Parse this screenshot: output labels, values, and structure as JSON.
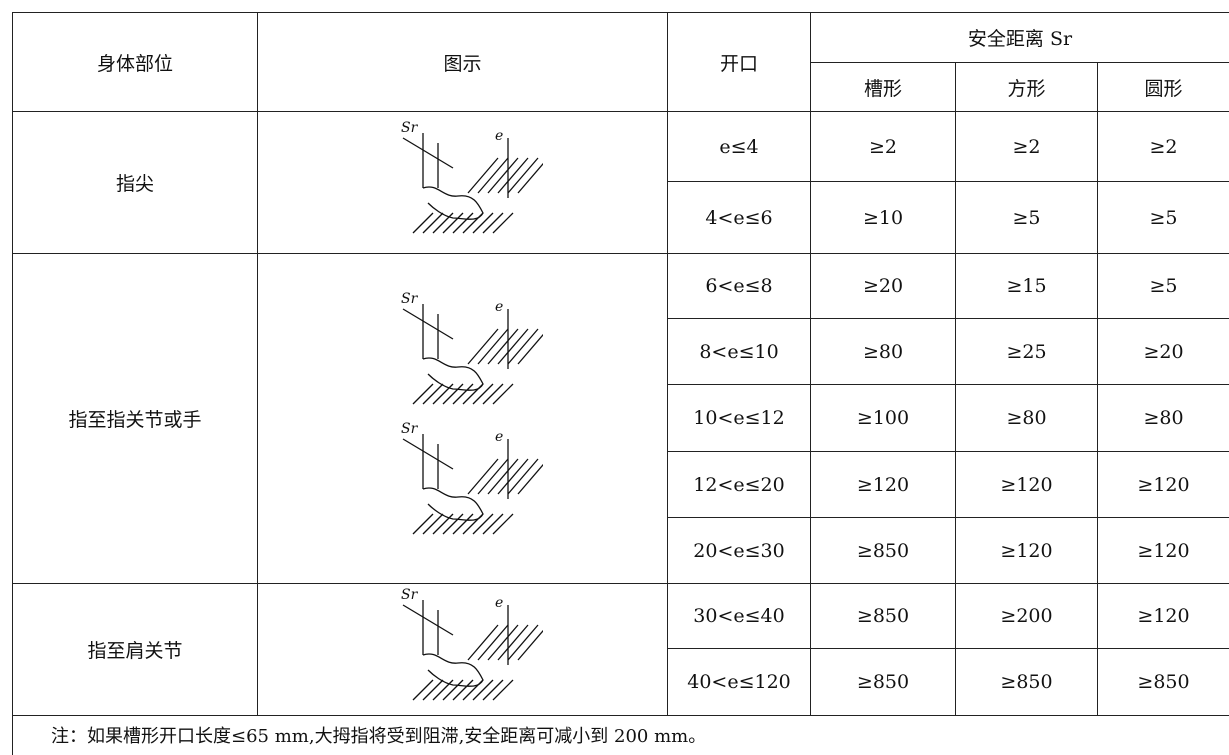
{
  "table": {
    "headers": {
      "body_part": "身体部位",
      "figure": "图示",
      "opening": "开口",
      "safety_distance": "安全距离 Sr",
      "shapes": [
        "槽形",
        "方形",
        "圆形"
      ]
    },
    "figure_labels": [
      "Sr",
      "e"
    ],
    "groups": [
      {
        "body_part": "指尖",
        "rows": [
          [
            "e≤4",
            "≥2",
            "≥2",
            "≥2"
          ],
          [
            "4<e≤6",
            "≥10",
            "≥5",
            "≥5"
          ]
        ]
      },
      {
        "body_part": "指至指关节或手",
        "rows": [
          [
            "6<e≤8",
            "≥20",
            "≥15",
            "≥5"
          ],
          [
            "8<e≤10",
            "≥80",
            "≥25",
            "≥20"
          ],
          [
            "10<e≤12",
            "≥100",
            "≥80",
            "≥80"
          ],
          [
            "12<e≤20",
            "≥120",
            "≥120",
            "≥120"
          ],
          [
            "20<e≤30",
            "≥850",
            "≥120",
            "≥120"
          ]
        ]
      },
      {
        "body_part": "指至肩关节",
        "rows": [
          [
            "30<e≤40",
            "≥850",
            "≥200",
            "≥120"
          ],
          [
            "40<e≤120",
            "≥850",
            "≥850",
            "≥850"
          ]
        ]
      }
    ]
  },
  "note": "注：如果槽形开口长度≤65 mm,大拇指将受到阻滞,安全距离可减小到 200 mm。"
}
